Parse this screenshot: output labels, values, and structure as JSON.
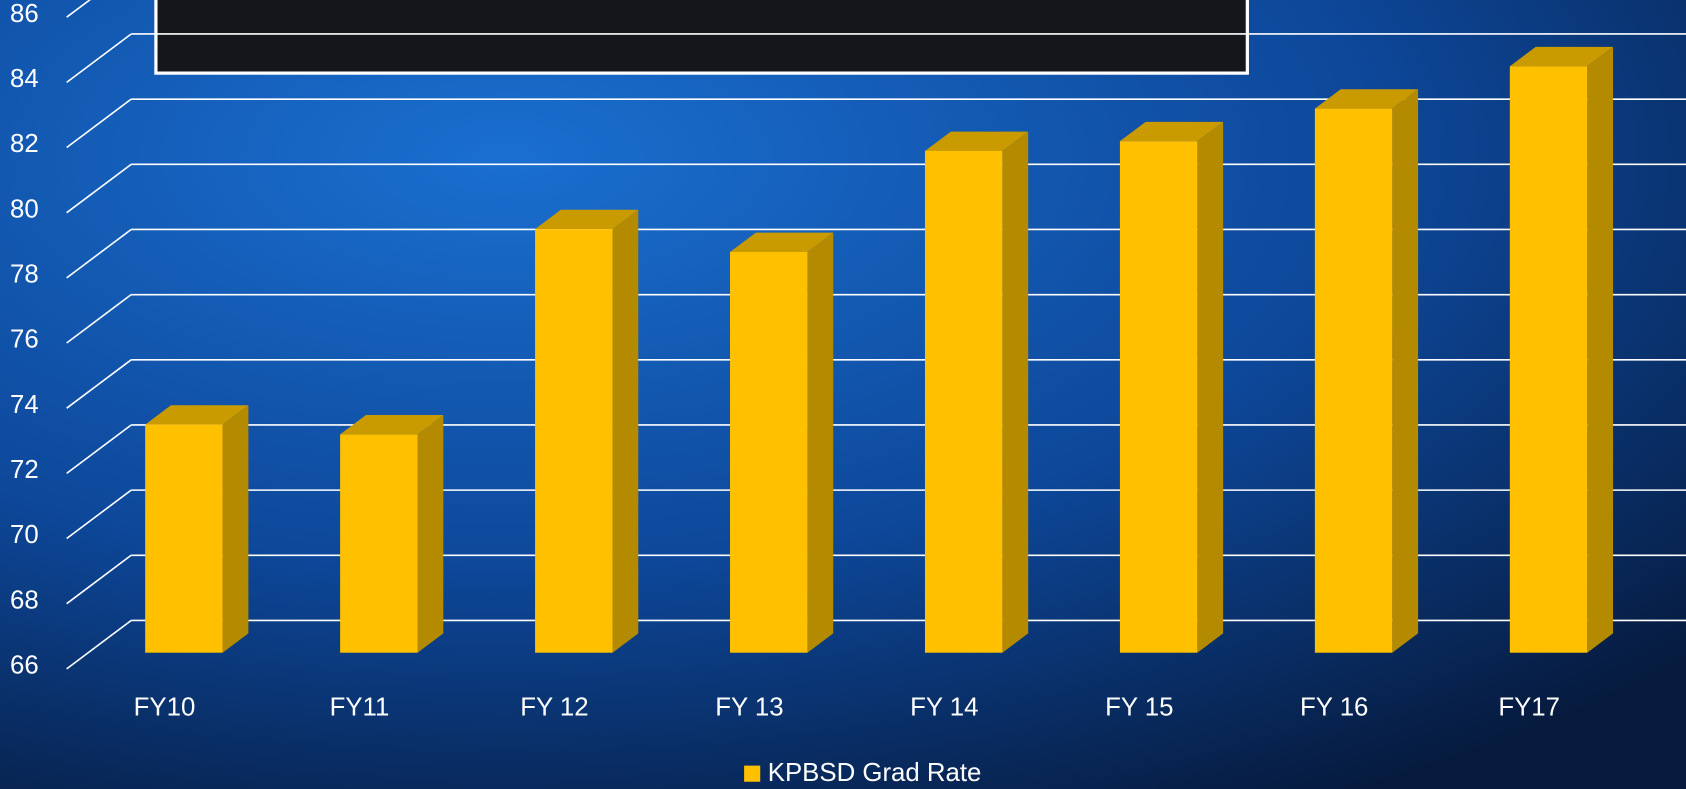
{
  "chart_data": {
    "type": "bar3d",
    "categories": [
      "FY10",
      "FY11",
      "FY 12",
      "FY 13",
      "FY 14",
      "FY 15",
      "FY 16",
      "FY17"
    ],
    "series": [
      {
        "name": "KPBSD Grad Rate",
        "color": "#FFC000",
        "values": [
          73.0,
          72.7,
          79.0,
          78.3,
          81.4,
          81.7,
          82.7,
          84.0
        ]
      }
    ],
    "ylim": [
      66,
      86
    ],
    "yticks": [
      66,
      68,
      70,
      72,
      74,
      76,
      78,
      80,
      82,
      84,
      86
    ],
    "grid": true,
    "legend": "bottom"
  }
}
